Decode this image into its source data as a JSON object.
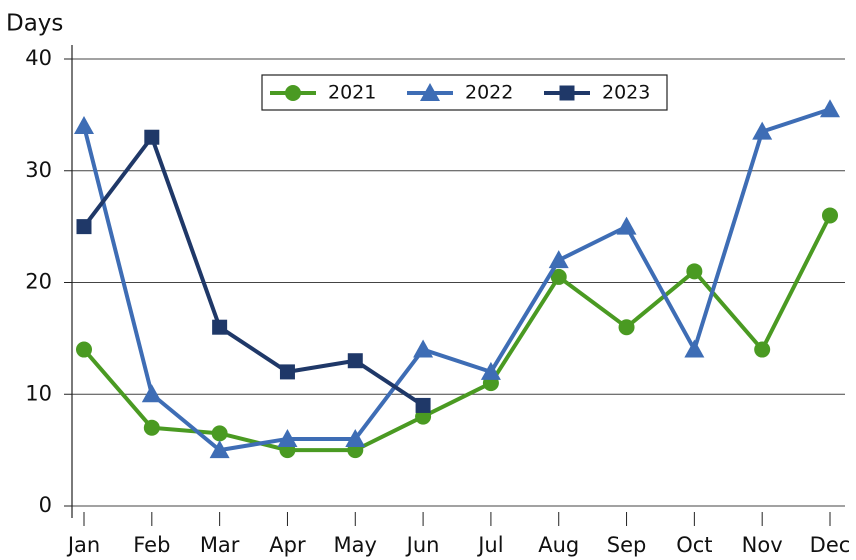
{
  "chart_data": {
    "type": "line",
    "y_label": "Days",
    "categories": [
      "Jan",
      "Feb",
      "Mar",
      "Apr",
      "May",
      "Jun",
      "Jul",
      "Aug",
      "Sep",
      "Oct",
      "Nov",
      "Dec"
    ],
    "series": [
      {
        "name": "2021",
        "color": "#4a9a22",
        "marker": "circle",
        "values": [
          14,
          7,
          6.5,
          5,
          5,
          8,
          11,
          20.5,
          16,
          21,
          14,
          26
        ]
      },
      {
        "name": "2022",
        "color": "#3e6db5",
        "marker": "triangle",
        "values": [
          34,
          10,
          5,
          6,
          6,
          14,
          12,
          22,
          25,
          14,
          33.5,
          35.5
        ]
      },
      {
        "name": "2023",
        "color": "#1f3868",
        "marker": "square",
        "values": [
          25,
          33,
          16,
          12,
          13,
          9,
          null,
          null,
          null,
          null,
          null,
          null
        ]
      }
    ],
    "ylim": [
      0,
      40
    ],
    "yticks": [
      0,
      10,
      20,
      30,
      40
    ],
    "grid": true,
    "legend": "top"
  }
}
